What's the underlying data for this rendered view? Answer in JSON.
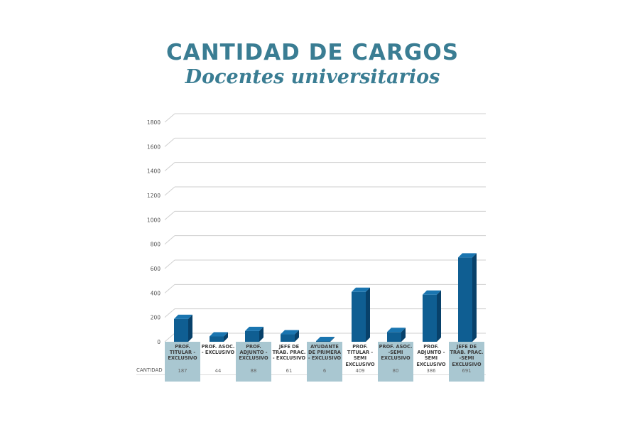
{
  "header": {
    "title": "CANTIDAD DE CARGOS",
    "subtitle": "Docentes universitarios"
  },
  "colors": {
    "title": "#3a7d93",
    "bar_front": "#0f5e92",
    "bar_side": "#08416a",
    "bar_top": "#1a75b0",
    "table_shade": "#a9c7d1"
  },
  "chart_data": {
    "type": "bar",
    "title": "CANTIDAD DE CARGOS",
    "subtitle": "Docentes universitarios",
    "ylim": [
      0,
      1800
    ],
    "yticks": [
      "0",
      "200",
      "400",
      "600",
      "800",
      "1000",
      "1200",
      "1400",
      "1600",
      "1800"
    ],
    "grid": true,
    "categories": [
      "PROF. TITULAR - EXCLUSIVO",
      "PROF. ASOC. - EXCLUSIVO",
      "PROF. ADJUNTO - EXCLUSIVO",
      "JEFE DE TRAB. PRAC. - EXCLUSIVO",
      "AYUDANTE DE PRIMERA - EXCLUSIVO",
      "PROF. TITULAR - SEMI EXCLUSIVO",
      "PROF. ASOC. -SEMI EXCLUSIVO",
      "PROF. ADJUNTO - SEMI EXCLUSIVO",
      "JEFE DE TRAB. PRAC. -SEMI EXCLUSIVO"
    ],
    "series": [
      {
        "name": "CANTIDAD",
        "values": [
          187,
          44,
          88,
          61,
          6,
          409,
          80,
          386,
          691
        ]
      }
    ],
    "table": {
      "row_label": "CANTIDAD",
      "value_labels": [
        "187",
        "44",
        "88",
        "61",
        "6",
        "409",
        "80",
        "386",
        "691"
      ],
      "shaded_columns": [
        true,
        false,
        true,
        false,
        true,
        false,
        true,
        false,
        true
      ]
    }
  }
}
